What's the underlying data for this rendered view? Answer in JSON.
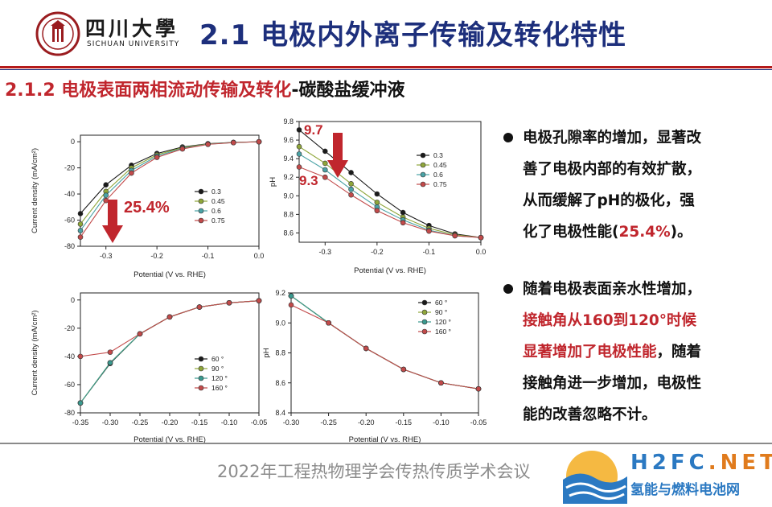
{
  "header": {
    "university_cn": "四川大學",
    "university_en": "SICHUAN UNIVERSITY",
    "title": "2.1 电极内外离子传输及转化特性"
  },
  "subtitle": {
    "main": "2.1.2 电极表面两相流动传输及转化",
    "suffix": "-碳酸盐缓冲液"
  },
  "charts": {
    "tl": {
      "annotation": "25.4%",
      "chart_data": {
        "type": "line",
        "xlabel": "Potential (V vs. RHE)",
        "ylabel": "Current density (mA/cm²)",
        "xlim": [
          -0.35,
          0.0
        ],
        "ylim": [
          -80,
          5
        ],
        "xticks": [
          "-0.3",
          "-0.2",
          "-0.1",
          "0.0"
        ],
        "yticks": [
          "0",
          "-20",
          "-40",
          "-60",
          "-80"
        ],
        "legend_position": "center-right",
        "x": [
          -0.35,
          -0.3,
          -0.25,
          -0.2,
          -0.15,
          -0.1,
          -0.05,
          0.0
        ],
        "series": [
          {
            "name": "0.3",
            "color": "#1a1a1a",
            "values": [
              -55,
              -33,
              -18,
              -9,
              -4,
              -1.5,
              -0.5,
              0
            ]
          },
          {
            "name": "0.45",
            "color": "#8fa63a",
            "values": [
              -63,
              -38,
              -20,
              -10,
              -4.5,
              -1.7,
              -0.6,
              0
            ]
          },
          {
            "name": "0.6",
            "color": "#4aa3a6",
            "values": [
              -68,
              -41,
              -22,
              -11,
              -5,
              -1.9,
              -0.6,
              0
            ]
          },
          {
            "name": "0.75",
            "color": "#c24a4a",
            "values": [
              -73,
              -45,
              -24,
              -12,
              -5.5,
              -2,
              -0.7,
              0
            ]
          }
        ]
      }
    },
    "tr": {
      "annotation_top": "9.7",
      "annotation_bottom": "9.3",
      "chart_data": {
        "type": "line",
        "xlabel": "Potential (V vs. RHE)",
        "ylabel": "pH",
        "xlim": [
          -0.35,
          0.0
        ],
        "ylim": [
          8.5,
          9.8
        ],
        "xticks": [
          "-0.3",
          "-0.2",
          "-0.1",
          "0.0"
        ],
        "yticks": [
          "9.8",
          "9.6",
          "9.4",
          "9.2",
          "9.0",
          "8.8",
          "8.6"
        ],
        "legend_position": "top-right",
        "x": [
          -0.35,
          -0.3,
          -0.25,
          -0.2,
          -0.15,
          -0.1,
          -0.05,
          0.0
        ],
        "series": [
          {
            "name": "0.3",
            "color": "#1a1a1a",
            "values": [
              9.71,
              9.48,
              9.25,
              9.02,
              8.82,
              8.68,
              8.59,
              8.55
            ]
          },
          {
            "name": "0.45",
            "color": "#8fa63a",
            "values": [
              9.53,
              9.35,
              9.13,
              8.93,
              8.77,
              8.65,
              8.58,
              8.55
            ]
          },
          {
            "name": "0.6",
            "color": "#4aa3a6",
            "values": [
              9.45,
              9.28,
              9.07,
              8.88,
              8.74,
              8.63,
              8.57,
              8.55
            ]
          },
          {
            "name": "0.75",
            "color": "#c24a4a",
            "values": [
              9.31,
              9.2,
              9.01,
              8.84,
              8.71,
              8.62,
              8.57,
              8.55
            ]
          }
        ]
      }
    },
    "bl": {
      "chart_data": {
        "type": "line",
        "xlabel": "Potential (V vs. RHE)",
        "ylabel": "Current density (mA/cm²)",
        "xlim": [
          -0.35,
          -0.05
        ],
        "ylim": [
          -80,
          5
        ],
        "xticks": [
          "-0.35",
          "-0.30",
          "-0.25",
          "-0.20",
          "-0.15",
          "-0.10",
          "-0.05"
        ],
        "yticks": [
          "0",
          "-20",
          "-40",
          "-60",
          "-80"
        ],
        "legend_position": "bottom-center",
        "x": [
          -0.35,
          -0.3,
          -0.25,
          -0.2,
          -0.15,
          -0.1,
          -0.05
        ],
        "series": [
          {
            "name": "60 °",
            "color": "#1a1a1a",
            "values": [
              -73,
              -45,
              -24,
              -12,
              -5,
              -2,
              -0.5
            ]
          },
          {
            "name": "90 °",
            "color": "#8fa63a",
            "values": [
              -73,
              -44.5,
              -24,
              -12,
              -5,
              -2,
              -0.5
            ]
          },
          {
            "name": "120 °",
            "color": "#3a9a8f",
            "values": [
              -73,
              -44.5,
              -24,
              -12,
              -5,
              -2,
              -0.5
            ]
          },
          {
            "name": "160 °",
            "color": "#c24a4a",
            "values": [
              -40,
              -37,
              -24,
              -12,
              -5,
              -2,
              -0.5
            ]
          }
        ]
      }
    },
    "br": {
      "chart_data": {
        "type": "line",
        "xlabel": "Potential (V vs. RHE)",
        "ylabel": "pH",
        "xlim": [
          -0.3,
          -0.05
        ],
        "ylim": [
          8.4,
          9.2
        ],
        "xticks": [
          "-0.30",
          "-0.25",
          "-0.20",
          "-0.15",
          "-0.10",
          "-0.05"
        ],
        "yticks": [
          "9.2",
          "9.0",
          "8.8",
          "8.6",
          "8.4"
        ],
        "legend_position": "top-right",
        "x": [
          -0.3,
          -0.25,
          -0.2,
          -0.15,
          -0.1,
          -0.05
        ],
        "series": [
          {
            "name": "60 °",
            "color": "#1a1a1a",
            "values": [
              9.18,
              9.0,
              8.83,
              8.69,
              8.6,
              8.56
            ]
          },
          {
            "name": "90 °",
            "color": "#8fa63a",
            "values": [
              9.18,
              9.0,
              8.83,
              8.69,
              8.6,
              8.56
            ]
          },
          {
            "name": "120 °",
            "color": "#3a9a8f",
            "values": [
              9.18,
              9.0,
              8.83,
              8.69,
              8.6,
              8.56
            ]
          },
          {
            "name": "160 °",
            "color": "#c24a4a",
            "values": [
              9.12,
              9.0,
              8.83,
              8.69,
              8.6,
              8.56
            ]
          }
        ]
      }
    }
  },
  "bullets": {
    "b1": {
      "line1": "电极孔隙率的增加，显著改",
      "line2": "善了电极内部的有效扩散，",
      "line3": "从而缓解了pH的极化，强",
      "line4a": "化了电极性能(",
      "line4b": "25.4%",
      "line4c": ")。"
    },
    "b2": {
      "line1": "随着电极表面亲水性增加，",
      "line2": "接触角从160到120°时候",
      "line3a": "显著增加了电极性能",
      "line3b": "，随着",
      "line4": "接触角进一步增加，电极性",
      "line5": "能的改善忽略不计。"
    }
  },
  "footer": {
    "conference": "2022年工程热物理学会传热传质学术会议",
    "brand_main": "H2FC",
    "brand_net": ".NET",
    "brand_cn": "氢能与燃料电池网"
  },
  "colors": {
    "title_blue": "#1d2f7c",
    "accent_red": "#c0262d",
    "logo_red": "#9a1c1f",
    "brand_blue": "#2b79c2",
    "brand_orange": "#e07b1d"
  }
}
